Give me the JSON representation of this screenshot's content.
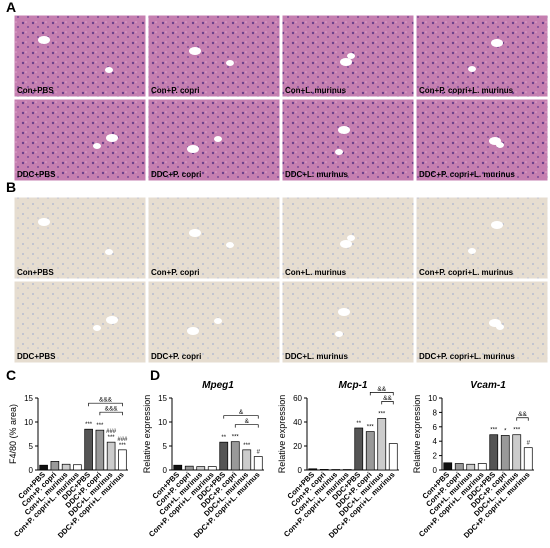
{
  "figure": {
    "panel_labels": [
      "A",
      "B",
      "C",
      "D"
    ],
    "panel_a_labels": [
      "Con+PBS",
      "Con+P. copri",
      "Con+L. murinus",
      "Con+P. copri+L. murinus",
      "DDC+PBS",
      "DDC+P. copri",
      "DDC+L. murinus",
      "DDC+P. copri+L. murinus"
    ],
    "panel_b_labels": [
      "Con+PBS",
      "Con+P. copri",
      "Con+L. murinus",
      "Con+P. copri+L. murinus",
      "DDC+PBS",
      "DDC+P. copri",
      "DDC+L. murinus",
      "DDC+P. copri+L. murinus"
    ]
  },
  "chart_data": [
    {
      "type": "bar",
      "ylabel": "F4/80 (% area)",
      "categories": [
        "Con+PBS",
        "Con+P. copri",
        "Con+L. murinus",
        "Con+P. copri+L. murinus",
        "DDC+PBS",
        "DDC+P. copri",
        "DDC+L. murinus",
        "DDC+P. copri+L. murinus"
      ],
      "values": [
        1,
        1.8,
        1.2,
        1.1,
        8.5,
        8.3,
        5.8,
        4.2
      ],
      "colors": [
        "#111111",
        "#999999",
        "#cccccc",
        "#ffffff",
        "#555555",
        "#999999",
        "#cccccc",
        "#ffffff"
      ],
      "ylim": [
        0,
        15
      ],
      "yticks": [
        0,
        5,
        10,
        15
      ],
      "significance": [
        [],
        [],
        [],
        [],
        [
          "***"
        ],
        [
          "***"
        ],
        [
          "###",
          "***"
        ],
        [
          "###",
          "***"
        ]
      ],
      "brackets": [
        {
          "text": "&&&",
          "from": "DDC+P. copri",
          "to": "DDC+P. copri+L. murinus"
        },
        {
          "text": "&&&",
          "from": "DDC+PBS",
          "to": "DDC+P. copri+L. murinus"
        }
      ]
    },
    {
      "type": "bar",
      "title": "Mpeg1",
      "ylabel": "Relative expression",
      "categories": [
        "Con+PBS",
        "Con+P. copri",
        "Con+L. murinus",
        "Con+P. copri+L. murinus",
        "DDC+PBS",
        "DDC+P. copri",
        "DDC+L. murinus",
        "DDC+P. copri+L. murinus"
      ],
      "values": [
        1,
        0.8,
        0.7,
        0.7,
        5.8,
        5.9,
        4.2,
        2.8
      ],
      "colors": [
        "#111111",
        "#999999",
        "#cccccc",
        "#ffffff",
        "#555555",
        "#999999",
        "#cccccc",
        "#ffffff"
      ],
      "ylim": [
        0,
        15
      ],
      "yticks": [
        0,
        5,
        10,
        15
      ],
      "significance": [
        [],
        [],
        [],
        [],
        [
          "**"
        ],
        [
          "***"
        ],
        [
          "***"
        ],
        [
          "#"
        ]
      ],
      "brackets": [
        {
          "text": "&",
          "from": "DDC+P. copri",
          "to": "DDC+P. copri+L. murinus"
        },
        {
          "text": "&",
          "from": "DDC+PBS",
          "to": "DDC+P. copri+L. murinus"
        }
      ]
    },
    {
      "type": "bar",
      "title": "Mcp-1",
      "ylabel": "Relative expression",
      "categories": [
        "Con+PBS",
        "Con+P. copri",
        "Con+L. murinus",
        "Con+P. copri+L. murinus",
        "DDC+PBS",
        "DDC+P. copri",
        "DDC+L. murinus",
        "DDC+P. copri+L. murinus"
      ],
      "values": [
        1,
        0.5,
        0.4,
        0.4,
        35,
        32,
        43,
        22
      ],
      "colors": [
        "#111111",
        "#999999",
        "#cccccc",
        "#ffffff",
        "#555555",
        "#999999",
        "#cccccc",
        "#ffffff"
      ],
      "ylim": [
        0,
        60
      ],
      "yticks": [
        0,
        20,
        40,
        60
      ],
      "significance": [
        [],
        [],
        [],
        [],
        [
          "**"
        ],
        [
          "***"
        ],
        [
          "***"
        ],
        []
      ],
      "brackets": [
        {
          "text": "&&",
          "from": "DDC+L. murinus",
          "to": "DDC+P. copri+L. murinus"
        },
        {
          "text": "&&",
          "from": "DDC+P. copri",
          "to": "DDC+P. copri+L. murinus"
        }
      ]
    },
    {
      "type": "bar",
      "title": "Vcam-1",
      "ylabel": "Relative expression",
      "categories": [
        "Con+PBS",
        "Con+P. copri",
        "Con+L. murinus",
        "Con+P. copri+L. murinus",
        "DDC+PBS",
        "DDC+P. copri",
        "DDC+L. murinus",
        "DDC+P. copri+L. murinus"
      ],
      "values": [
        1,
        0.9,
        0.8,
        0.9,
        4.9,
        4.8,
        4.9,
        3.1
      ],
      "colors": [
        "#111111",
        "#999999",
        "#cccccc",
        "#ffffff",
        "#555555",
        "#999999",
        "#cccccc",
        "#ffffff"
      ],
      "ylim": [
        0,
        10
      ],
      "yticks": [
        0,
        2,
        4,
        6,
        8,
        10
      ],
      "significance": [
        [],
        [],
        [],
        [],
        [
          "***"
        ],
        [
          "*"
        ],
        [
          "***"
        ],
        [
          "#"
        ]
      ],
      "brackets": [
        {
          "text": "&&",
          "from": "DDC+L. murinus",
          "to": "DDC+P. copri+L. murinus"
        }
      ]
    }
  ]
}
